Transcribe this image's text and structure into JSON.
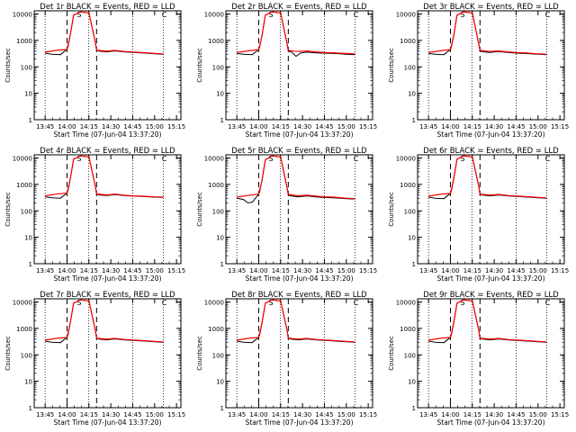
{
  "chart_data": [
    {
      "type": "line",
      "title": "Det 1r BLACK = Events, RED = LLD",
      "xlabel": "Start Time (07-Jun-04 13:37:20)",
      "ylabel": "Counts/sec",
      "ylim": [
        1,
        10000
      ],
      "yscale": "log",
      "xticks": [
        "13:45",
        "14:00",
        "14:15",
        "14:30",
        "14:45",
        "15:00",
        "15:15"
      ],
      "yticks": [
        "1",
        "10",
        "100",
        "1000",
        "10000"
      ],
      "markers": [
        "S",
        "C"
      ],
      "series": [
        {
          "name": "Events",
          "color": "#000000",
          "x": [
            0,
            0.3,
            0.7,
            1.0,
            1.05,
            1.15,
            1.3,
            1.6,
            2.0,
            2.3,
            2.35,
            2.5,
            2.8,
            3.2,
            3.6,
            4.0,
            4.4,
            5.0,
            5.4
          ],
          "y": [
            330,
            300,
            290,
            460,
            600,
            1600,
            9000,
            12000,
            11000,
            800,
            420,
            390,
            370,
            400,
            370,
            350,
            340,
            310,
            300
          ]
        },
        {
          "name": "LLD",
          "color": "#ff0000",
          "x": [
            0,
            0.5,
            1.0,
            1.15,
            1.3,
            1.6,
            2.0,
            2.3,
            2.35,
            2.8,
            3.2,
            3.6,
            4.0,
            4.4,
            5.0,
            5.4
          ],
          "y": [
            360,
            420,
            460,
            1600,
            9000,
            12000,
            11000,
            800,
            430,
            390,
            420,
            380,
            360,
            350,
            320,
            310
          ]
        }
      ]
    },
    {
      "type": "line",
      "title": "Det 2r BLACK = Events, RED = LLD",
      "xlabel": "Start Time (07-Jun-04 13:37:20)",
      "ylabel": "Counts/sec",
      "ylim": [
        1,
        10000
      ],
      "yscale": "log",
      "xticks": [
        "13:45",
        "14:00",
        "14:15",
        "14:30",
        "14:45",
        "15:00",
        "15:15"
      ],
      "yticks": [
        "1",
        "10",
        "100",
        "1000",
        "10000"
      ],
      "markers": [
        "S",
        "C"
      ],
      "series": [
        {
          "name": "Events",
          "color": "#000000",
          "x": [
            0,
            0.3,
            0.7,
            1.0,
            1.05,
            1.15,
            1.3,
            1.6,
            2.0,
            2.3,
            2.35,
            2.5,
            2.7,
            2.9,
            3.2,
            3.6,
            4.0,
            4.4,
            5.0,
            5.4
          ],
          "y": [
            320,
            300,
            290,
            450,
            600,
            1500,
            9000,
            12000,
            11000,
            700,
            400,
            360,
            250,
            330,
            360,
            340,
            330,
            320,
            300,
            290
          ]
        },
        {
          "name": "LLD",
          "color": "#ff0000",
          "x": [
            0,
            0.5,
            1.0,
            1.15,
            1.3,
            1.6,
            2.0,
            2.3,
            2.35,
            2.7,
            3.2,
            3.6,
            4.0,
            4.4,
            5.0,
            5.4
          ],
          "y": [
            350,
            400,
            450,
            1500,
            9000,
            12000,
            11000,
            700,
            420,
            380,
            400,
            370,
            350,
            340,
            320,
            310
          ]
        }
      ]
    },
    {
      "type": "line",
      "title": "Det 3r BLACK = Events, RED = LLD",
      "xlabel": "Start Time (07-Jun-04 13:37:20)",
      "ylabel": "Counts/sec",
      "ylim": [
        1,
        10000
      ],
      "yscale": "log",
      "xticks": [
        "13:45",
        "14:00",
        "14:15",
        "14:30",
        "14:45",
        "15:00",
        "15:15"
      ],
      "yticks": [
        "1",
        "10",
        "100",
        "1000",
        "10000"
      ],
      "markers": [
        "S",
        "C"
      ],
      "series": [
        {
          "name": "Events",
          "color": "#000000",
          "x": [
            0,
            0.3,
            0.7,
            1.0,
            1.05,
            1.15,
            1.3,
            1.6,
            2.0,
            2.3,
            2.35,
            2.5,
            2.8,
            3.2,
            3.6,
            4.0,
            4.4,
            5.0,
            5.4
          ],
          "y": [
            320,
            300,
            290,
            450,
            600,
            1500,
            9000,
            12000,
            11000,
            700,
            400,
            370,
            350,
            380,
            350,
            330,
            320,
            300,
            290
          ]
        },
        {
          "name": "LLD",
          "color": "#ff0000",
          "x": [
            0,
            0.5,
            1.0,
            1.15,
            1.3,
            1.6,
            2.0,
            2.3,
            2.35,
            2.8,
            3.2,
            3.6,
            4.0,
            4.4,
            5.0,
            5.4
          ],
          "y": [
            350,
            400,
            450,
            1500,
            9000,
            12000,
            11000,
            700,
            420,
            380,
            400,
            370,
            350,
            340,
            310,
            300
          ]
        }
      ]
    },
    {
      "type": "line",
      "title": "Det 4r BLACK = Events, RED = LLD",
      "xlabel": "Start Time (07-Jun-04 13:37:20)",
      "ylabel": "Counts/sec",
      "ylim": [
        1,
        10000
      ],
      "yscale": "log",
      "xticks": [
        "13:45",
        "14:00",
        "14:15",
        "14:30",
        "14:45",
        "15:00",
        "15:15"
      ],
      "yticks": [
        "1",
        "10",
        "100",
        "1000",
        "10000"
      ],
      "markers": [
        "S",
        "C"
      ],
      "series": [
        {
          "name": "Events",
          "color": "#000000",
          "x": [
            0,
            0.3,
            0.7,
            1.0,
            1.05,
            1.15,
            1.3,
            1.6,
            2.0,
            2.3,
            2.35,
            2.5,
            2.8,
            3.2,
            3.6,
            4.0,
            4.4,
            5.0,
            5.4
          ],
          "y": [
            340,
            310,
            300,
            470,
            600,
            1600,
            9000,
            12000,
            11000,
            800,
            430,
            400,
            380,
            410,
            380,
            360,
            350,
            330,
            320
          ]
        },
        {
          "name": "LLD",
          "color": "#ff0000",
          "x": [
            0,
            0.5,
            1.0,
            1.15,
            1.3,
            1.6,
            2.0,
            2.3,
            2.35,
            2.8,
            3.2,
            3.6,
            4.0,
            4.4,
            5.0,
            5.4
          ],
          "y": [
            370,
            430,
            470,
            1600,
            9000,
            12000,
            11000,
            800,
            440,
            400,
            430,
            390,
            370,
            360,
            340,
            330
          ]
        }
      ]
    },
    {
      "type": "line",
      "title": "Det 5r BLACK = Events, RED = LLD",
      "xlabel": "Start Time (07-Jun-04 13:37:20)",
      "ylabel": "Counts/sec",
      "ylim": [
        1,
        10000
      ],
      "yscale": "log",
      "xticks": [
        "13:45",
        "14:00",
        "14:15",
        "14:30",
        "14:45",
        "15:00",
        "15:15"
      ],
      "yticks": [
        "1",
        "10",
        "100",
        "1000",
        "10000"
      ],
      "markers": [
        "S",
        "C"
      ],
      "series": [
        {
          "name": "Events",
          "color": "#000000",
          "x": [
            0,
            0.3,
            0.5,
            0.7,
            1.0,
            1.05,
            1.15,
            1.3,
            1.6,
            2.0,
            2.3,
            2.35,
            2.5,
            2.8,
            3.2,
            3.6,
            4.0,
            4.4,
            5.0,
            5.4
          ],
          "y": [
            300,
            270,
            200,
            210,
            430,
            550,
            1400,
            8500,
            12000,
            11000,
            700,
            400,
            360,
            340,
            370,
            340,
            320,
            310,
            290,
            280
          ]
        },
        {
          "name": "LLD",
          "color": "#ff0000",
          "x": [
            0,
            0.5,
            1.0,
            1.15,
            1.3,
            1.6,
            2.0,
            2.3,
            2.35,
            2.8,
            3.2,
            3.6,
            4.0,
            4.4,
            5.0,
            5.4
          ],
          "y": [
            330,
            380,
            430,
            1400,
            8500,
            12000,
            11000,
            700,
            420,
            370,
            390,
            360,
            340,
            330,
            300,
            290
          ]
        }
      ]
    },
    {
      "type": "line",
      "title": "Det 6r BLACK = Events, RED = LLD",
      "xlabel": "Start Time (07-Jun-04 13:37:20)",
      "ylabel": "Counts/sec",
      "ylim": [
        1,
        10000
      ],
      "yscale": "log",
      "xticks": [
        "13:45",
        "14:00",
        "14:15",
        "14:30",
        "14:45",
        "15:00",
        "15:15"
      ],
      "yticks": [
        "1",
        "10",
        "100",
        "1000",
        "10000"
      ],
      "markers": [
        "S",
        "C"
      ],
      "series": [
        {
          "name": "Events",
          "color": "#000000",
          "x": [
            0,
            0.3,
            0.7,
            1.0,
            1.05,
            1.15,
            1.3,
            1.6,
            2.0,
            2.3,
            2.35,
            2.5,
            2.8,
            3.2,
            3.6,
            4.0,
            4.4,
            5.0,
            5.4
          ],
          "y": [
            330,
            300,
            290,
            460,
            600,
            1600,
            9000,
            12000,
            11000,
            800,
            420,
            390,
            370,
            400,
            370,
            350,
            340,
            310,
            300
          ]
        },
        {
          "name": "LLD",
          "color": "#ff0000",
          "x": [
            0,
            0.5,
            1.0,
            1.15,
            1.3,
            1.6,
            2.0,
            2.3,
            2.35,
            2.8,
            3.2,
            3.6,
            4.0,
            4.4,
            5.0,
            5.4
          ],
          "y": [
            360,
            420,
            460,
            1600,
            9000,
            12000,
            11000,
            800,
            430,
            390,
            420,
            380,
            360,
            350,
            320,
            310
          ]
        }
      ]
    },
    {
      "type": "line",
      "title": "Det 7r BLACK = Events, RED = LLD",
      "xlabel": "Start Time (07-Jun-04 13:37:20)",
      "ylabel": "Counts/sec",
      "ylim": [
        1,
        10000
      ],
      "yscale": "log",
      "xticks": [
        "13:45",
        "14:00",
        "14:15",
        "14:30",
        "14:45",
        "15:00",
        "15:15"
      ],
      "yticks": [
        "1",
        "10",
        "100",
        "1000",
        "10000"
      ],
      "markers": [
        "S",
        "C"
      ],
      "series": [
        {
          "name": "Events",
          "color": "#000000",
          "x": [
            0,
            0.3,
            0.7,
            1.0,
            1.05,
            1.15,
            1.3,
            1.6,
            2.0,
            2.3,
            2.35,
            2.5,
            2.8,
            3.2,
            3.6,
            4.0,
            4.4,
            5.0,
            5.4
          ],
          "y": [
            330,
            300,
            290,
            460,
            600,
            1600,
            9000,
            12000,
            11000,
            800,
            420,
            390,
            370,
            400,
            370,
            350,
            340,
            310,
            300
          ]
        },
        {
          "name": "LLD",
          "color": "#ff0000",
          "x": [
            0,
            0.5,
            1.0,
            1.15,
            1.3,
            1.6,
            2.0,
            2.3,
            2.35,
            2.8,
            3.2,
            3.6,
            4.0,
            4.4,
            5.0,
            5.4
          ],
          "y": [
            360,
            420,
            460,
            1600,
            9000,
            12000,
            11000,
            800,
            430,
            390,
            420,
            380,
            360,
            350,
            320,
            310
          ]
        }
      ]
    },
    {
      "type": "line",
      "title": "Det 8r BLACK = Events, RED = LLD",
      "xlabel": "Start Time (07-Jun-04 13:37:20)",
      "ylabel": "Counts/sec",
      "ylim": [
        1,
        10000
      ],
      "yscale": "log",
      "xticks": [
        "13:45",
        "14:00",
        "14:15",
        "14:30",
        "14:45",
        "15:00",
        "15:15"
      ],
      "yticks": [
        "1",
        "10",
        "100",
        "1000",
        "10000"
      ],
      "markers": [
        "S",
        "C"
      ],
      "series": [
        {
          "name": "Events",
          "color": "#000000",
          "x": [
            0,
            0.3,
            0.7,
            1.0,
            1.05,
            1.15,
            1.3,
            1.6,
            2.0,
            2.3,
            2.35,
            2.5,
            2.8,
            3.2,
            3.6,
            4.0,
            4.4,
            5.0,
            5.4
          ],
          "y": [
            330,
            300,
            290,
            460,
            600,
            1600,
            9000,
            12000,
            11000,
            800,
            420,
            390,
            370,
            400,
            370,
            350,
            340,
            310,
            300
          ]
        },
        {
          "name": "LLD",
          "color": "#ff0000",
          "x": [
            0,
            0.5,
            1.0,
            1.15,
            1.3,
            1.6,
            2.0,
            2.3,
            2.35,
            2.8,
            3.2,
            3.6,
            4.0,
            4.4,
            5.0,
            5.4
          ],
          "y": [
            360,
            420,
            460,
            1600,
            9000,
            12000,
            11000,
            800,
            430,
            390,
            420,
            380,
            360,
            350,
            320,
            310
          ]
        }
      ]
    },
    {
      "type": "line",
      "title": "Det 9r BLACK = Events, RED = LLD",
      "xlabel": "Start Time (07-Jun-04 13:37:20)",
      "ylabel": "Counts/sec",
      "ylim": [
        1,
        10000
      ],
      "yscale": "log",
      "xticks": [
        "13:45",
        "14:00",
        "14:15",
        "14:30",
        "14:45",
        "15:00",
        "15:15"
      ],
      "yticks": [
        "1",
        "10",
        "100",
        "1000",
        "10000"
      ],
      "markers": [
        "S",
        "C"
      ],
      "series": [
        {
          "name": "Events",
          "color": "#000000",
          "x": [
            0,
            0.3,
            0.7,
            1.0,
            1.05,
            1.15,
            1.3,
            1.6,
            2.0,
            2.3,
            2.35,
            2.5,
            2.8,
            3.2,
            3.6,
            4.0,
            4.4,
            5.0,
            5.4
          ],
          "y": [
            330,
            300,
            290,
            460,
            600,
            1600,
            9000,
            12000,
            11000,
            800,
            420,
            390,
            370,
            400,
            370,
            350,
            340,
            310,
            300
          ]
        },
        {
          "name": "LLD",
          "color": "#ff0000",
          "x": [
            0,
            0.5,
            1.0,
            1.15,
            1.3,
            1.6,
            2.0,
            2.3,
            2.35,
            2.8,
            3.2,
            3.6,
            4.0,
            4.4,
            5.0,
            5.4
          ],
          "y": [
            360,
            420,
            460,
            1600,
            9000,
            12000,
            11000,
            800,
            430,
            390,
            420,
            380,
            360,
            350,
            320,
            310
          ]
        }
      ]
    }
  ]
}
